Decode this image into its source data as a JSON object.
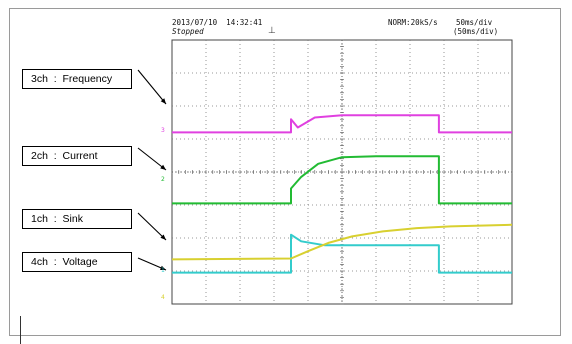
{
  "header": {
    "datetime": "2013/07/10  14:32:41",
    "status": "Stopped",
    "mode": "NORM:20kS/s",
    "timebase": "50ms/div",
    "timebase_paren": "(50ms/div)",
    "trigger_symbol": "⊥"
  },
  "labels": [
    {
      "text": "3ch  :  Frequency",
      "channel": "3"
    },
    {
      "text": "2ch  :  Current",
      "channel": "2"
    },
    {
      "text": "1ch  :  Sink",
      "channel": "1"
    },
    {
      "text": "4ch  :  Voltage",
      "channel": "4"
    }
  ],
  "channel_markers": [
    "3",
    "2",
    "1",
    "4"
  ],
  "colors": {
    "ch3": "#e040e0",
    "ch2": "#22bb33",
    "ch1": "#33cccc",
    "ch4": "#d8d030",
    "grid": "#7a7a7a"
  },
  "chart_data": {
    "type": "line",
    "grid": true,
    "x_divisions": 10,
    "y_divisions": 8,
    "series": [
      {
        "color": "ch3",
        "x": [
          0,
          3.5,
          3.5,
          3.7,
          4.2,
          5,
          6,
          7,
          7.85,
          7.85,
          10
        ],
        "y": [
          5.2,
          5.2,
          5.6,
          5.35,
          5.65,
          5.72,
          5.72,
          5.72,
          5.72,
          5.2,
          5.2
        ]
      },
      {
        "color": "ch2",
        "x": [
          0,
          3.5,
          3.5,
          3.8,
          4.3,
          5,
          6,
          7,
          7.85,
          7.85,
          10
        ],
        "y": [
          3.05,
          3.05,
          3.5,
          3.85,
          4.25,
          4.45,
          4.48,
          4.48,
          4.48,
          3.05,
          3.05
        ]
      },
      {
        "color": "ch1",
        "x": [
          0,
          3.5,
          3.5,
          3.8,
          4.5,
          6,
          7.85,
          7.85,
          10
        ],
        "y": [
          0.95,
          0.95,
          2.1,
          1.9,
          1.78,
          1.78,
          1.78,
          0.95,
          0.95
        ]
      },
      {
        "color": "ch4",
        "x": [
          0,
          3.5,
          4,
          4.6,
          5.3,
          6.2,
          7.2,
          8.2,
          9.2,
          10
        ],
        "y": [
          1.35,
          1.38,
          1.6,
          1.85,
          2.05,
          2.2,
          2.3,
          2.35,
          2.38,
          2.4
        ]
      }
    ]
  }
}
